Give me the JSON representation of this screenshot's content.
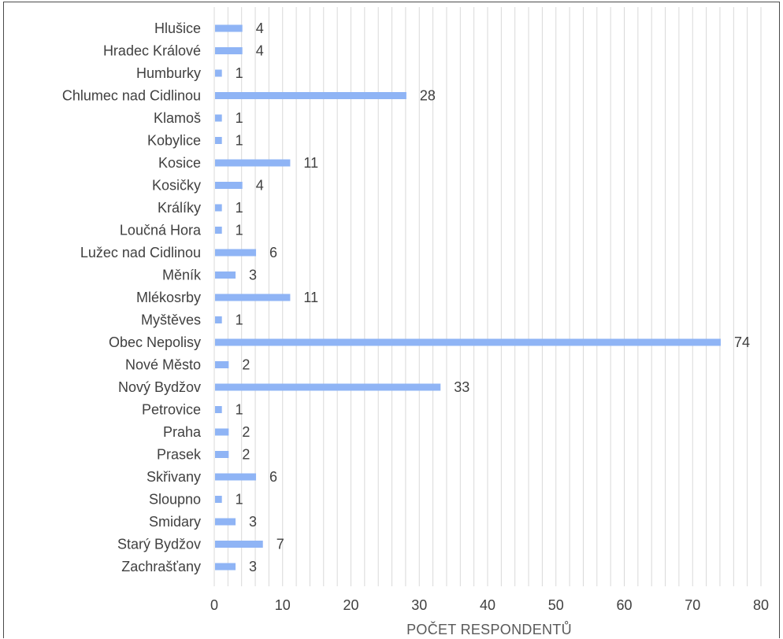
{
  "chart_data": {
    "type": "bar",
    "orientation": "horizontal",
    "categories": [
      "Hlušice",
      "Hradec Králové",
      "Humburky",
      "Chlumec nad Cidlinou",
      "Klamoš",
      "Kobylice",
      "Kosice",
      "Kosičky",
      "Králíky",
      "Loučná Hora",
      "Lužec nad Cidlinou",
      "Měník",
      "Mlékosrby",
      "Myštěves",
      "Obec Nepolisy",
      "Nové Město",
      "Nový Bydžov",
      "Petrovice",
      "Praha",
      "Prasek",
      "Skřivany",
      "Sloupno",
      "Smidary",
      "Starý Bydžov",
      "Zachrašťany"
    ],
    "values": [
      4,
      4,
      1,
      28,
      1,
      1,
      11,
      4,
      1,
      1,
      6,
      3,
      11,
      1,
      74,
      2,
      33,
      1,
      2,
      2,
      6,
      1,
      3,
      7,
      3
    ],
    "xlabel": "POČET RESPONDENTŮ",
    "ylabel": "",
    "xlim": [
      0,
      80
    ],
    "ticks": [
      0,
      10,
      20,
      30,
      40,
      50,
      60,
      70,
      80
    ],
    "tick_labels": [
      "0",
      "10",
      "20",
      "30",
      "40",
      "50",
      "60",
      "70",
      "80"
    ],
    "grid": "vertical",
    "legend": "none",
    "data_labels": true,
    "bar_color": "#8fb4f5",
    "grid_color": "#d9d9d9",
    "text_color": "#404040"
  }
}
